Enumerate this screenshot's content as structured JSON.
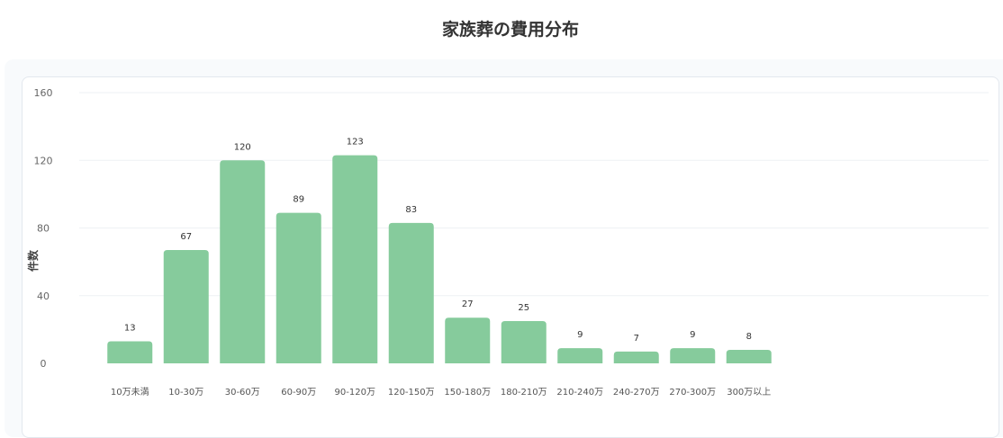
{
  "chart_data": {
    "type": "bar",
    "title": "家族葬の費用分布",
    "xlabel": "",
    "ylabel": "件数",
    "ylim": [
      0,
      160
    ],
    "yticks": [
      0,
      40,
      80,
      120,
      160
    ],
    "grid": true,
    "categories": [
      "10万未満",
      "10-30万",
      "30-60万",
      "60-90万",
      "90-120万",
      "120-150万",
      "150-180万",
      "180-210万",
      "210-240万",
      "240-270万",
      "270-300万",
      "300万以上"
    ],
    "values": [
      13,
      67,
      120,
      89,
      123,
      83,
      27,
      25,
      9,
      7,
      9,
      8
    ],
    "bar_color": "#86cb9c"
  }
}
